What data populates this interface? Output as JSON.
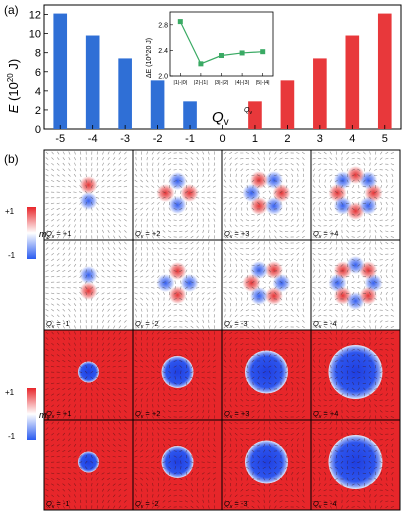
{
  "panel_a": {
    "label": "(a)",
    "ylabel_var": "E",
    "ylabel_unit": "(10",
    "ylabel_exp": "20",
    "ylabel_tail": " J)",
    "xlabel_var": "Q",
    "xlabel_sub": "v"
  },
  "panel_b": {
    "label": "(b)"
  },
  "colorbars": [
    {
      "var": "m",
      "sub": "z",
      "top_label": "+1",
      "bottom_label": "-1"
    },
    {
      "var": "m",
      "sub": "x",
      "top_label": "+1",
      "bottom_label": "-1"
    }
  ],
  "tiles": [
    {
      "row": 0,
      "col": 0,
      "label_var": "Q",
      "label_sub": "v",
      "label_value": " = +1",
      "kind": "vortex",
      "n": 1
    },
    {
      "row": 0,
      "col": 1,
      "label_var": "Q",
      "label_sub": "v",
      "label_value": " = +2",
      "kind": "vortex",
      "n": 2
    },
    {
      "row": 0,
      "col": 2,
      "label_var": "Q",
      "label_sub": "v",
      "label_value": " = +3",
      "kind": "vortex",
      "n": 3
    },
    {
      "row": 0,
      "col": 3,
      "label_var": "Q",
      "label_sub": "v",
      "label_value": " = +4",
      "kind": "vortex",
      "n": 4
    },
    {
      "row": 1,
      "col": 0,
      "label_var": "Q",
      "label_sub": "v",
      "label_value": " = -1",
      "kind": "vortex",
      "n": 1
    },
    {
      "row": 1,
      "col": 1,
      "label_var": "Q",
      "label_sub": "v",
      "label_value": " = -2",
      "kind": "vortex",
      "n": 2
    },
    {
      "row": 1,
      "col": 2,
      "label_var": "Q",
      "label_sub": "v",
      "label_value": " = -3",
      "kind": "vortex",
      "n": 3
    },
    {
      "row": 1,
      "col": 3,
      "label_var": "Q",
      "label_sub": "v",
      "label_value": " = -4",
      "kind": "vortex",
      "n": 4
    },
    {
      "row": 2,
      "col": 0,
      "label_var": "Q",
      "label_sub": "v",
      "label_value": " = +1",
      "kind": "bubble",
      "n": 1
    },
    {
      "row": 2,
      "col": 1,
      "label_var": "Q",
      "label_sub": "v",
      "label_value": " = +2",
      "kind": "bubble",
      "n": 2
    },
    {
      "row": 2,
      "col": 2,
      "label_var": "Q",
      "label_sub": "v",
      "label_value": " = +3",
      "kind": "bubble",
      "n": 3
    },
    {
      "row": 2,
      "col": 3,
      "label_var": "Q",
      "label_sub": "v",
      "label_value": " = +4",
      "kind": "bubble",
      "n": 4
    },
    {
      "row": 3,
      "col": 0,
      "label_var": "Q",
      "label_sub": "v",
      "label_value": " = -1",
      "kind": "bubble",
      "n": 1
    },
    {
      "row": 3,
      "col": 1,
      "label_var": "Q",
      "label_sub": "v",
      "label_value": " = -2",
      "kind": "bubble",
      "n": 2
    },
    {
      "row": 3,
      "col": 2,
      "label_var": "Q",
      "label_sub": "v",
      "label_value": " = -3",
      "kind": "bubble",
      "n": 3
    },
    {
      "row": 3,
      "col": 3,
      "label_var": "Q",
      "label_sub": "v",
      "label_value": " = -4",
      "kind": "bubble",
      "n": 4
    }
  ],
  "chart_data": [
    {
      "type": "bar",
      "categories": [
        "-5",
        "-4",
        "-3",
        "-2",
        "-1",
        "0",
        "1",
        "2",
        "3",
        "4",
        "5"
      ],
      "values": [
        12.1,
        9.8,
        7.4,
        5.1,
        2.9,
        null,
        2.9,
        5.1,
        7.4,
        9.8,
        12.1
      ],
      "colors": [
        "#2f6fd6",
        "#2f6fd6",
        "#2f6fd6",
        "#2f6fd6",
        "#2f6fd6",
        null,
        "#e8383b",
        "#e8383b",
        "#e8383b",
        "#e8383b",
        "#e8383b"
      ],
      "xlabel": "Qv",
      "ylabel": "E (10^20 J)",
      "ylim": [
        0,
        13
      ],
      "yticks": [
        0,
        2,
        4,
        6,
        8,
        10,
        12
      ]
    },
    {
      "type": "line",
      "categories": [
        "|1|-|0|",
        "|2|-|1|",
        "|3|-|2|",
        "|4|-|3|",
        "|5|-|4|"
      ],
      "values": [
        2.85,
        2.19,
        2.32,
        2.36,
        2.38
      ],
      "color": "#3aaa64",
      "xlabel": "Q",
      "xlabel_sub": "v",
      "ylabel": "ΔE (10^20 J)",
      "ylim": [
        2.0,
        3.0
      ],
      "yticks": [
        2.0,
        2.4,
        2.8
      ]
    }
  ]
}
